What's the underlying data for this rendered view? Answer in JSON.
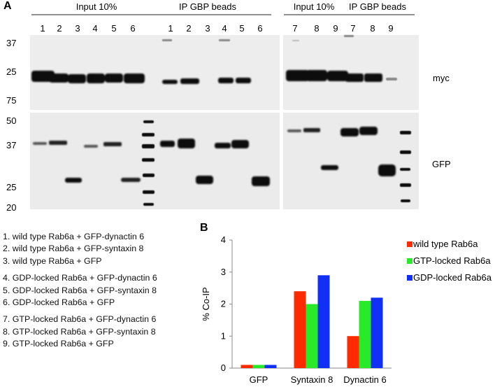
{
  "panel_a": {
    "label": "A",
    "left_headers": {
      "input": "Input 10%",
      "ip": "IP GBP beads"
    },
    "right_headers": {
      "input": "Input 10%",
      "ip": "IP GBP beads"
    },
    "left_lanes": [
      "1",
      "2",
      "3",
      "4",
      "5",
      "6",
      "1",
      "2",
      "3",
      "4",
      "5",
      "6"
    ],
    "right_lanes": [
      "7",
      "8",
      "9",
      "7",
      "8",
      "9"
    ],
    "mw_top": [
      "37",
      "25",
      "75"
    ],
    "mw_bottom": [
      "50",
      "37",
      "25",
      "20"
    ],
    "blot_labels": {
      "top": "myc",
      "bottom": "GFP"
    },
    "legend_groups": [
      [
        "1. wild type Rab6a + GFP-dynactin 6",
        "2. wild type Rab6a + GFP-syntaxin 8",
        "3. wild type Rab6a + GFP"
      ],
      [
        "4. GDP-locked Rab6a + GFP-dynactin 6",
        "5. GDP-locked Rab6a + GFP-syntaxin 8",
        "6. GDP-locked Rab6a + GFP"
      ],
      [
        "7. GTP-locked Rab6a + GFP-dynactin 6",
        "8. GTP-locked Rab6a + GFP-syntaxin 8",
        "9. GTP-locked Rab6a + GFP"
      ]
    ]
  },
  "panel_b": {
    "label": "B"
  },
  "chart_data": {
    "type": "bar",
    "categories": [
      "GFP",
      "Syntaxin 8",
      "Dynactin 6"
    ],
    "series": [
      {
        "name": "wild type Rab6a",
        "values": [
          0.1,
          2.4,
          1.0
        ],
        "color": "#ff2a00"
      },
      {
        "name": "GTP-locked Rab6a",
        "values": [
          0.1,
          2.0,
          2.1
        ],
        "color": "#29ea29"
      },
      {
        "name": "GDP-locked Rab6a",
        "values": [
          0.1,
          2.9,
          2.2
        ],
        "color": "#1230f5"
      }
    ],
    "ylabel": "% Co-IP",
    "ylim": [
      0,
      4
    ],
    "yticks": [
      "0",
      "1",
      "2",
      "3",
      "4"
    ],
    "legend_position": "right",
    "grid": false
  }
}
